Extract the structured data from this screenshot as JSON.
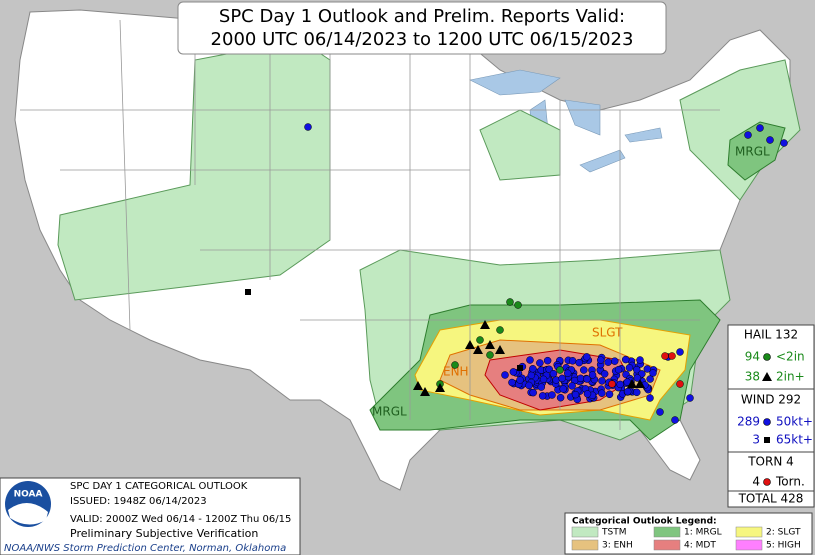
{
  "title": [
    "SPC Day 1 Outlook and Prelim. Reports Valid:",
    "2000 UTC 06/14/2023 to 1200 UTC 06/15/2023"
  ],
  "map_labels": [
    "MRGL",
    "SLGT",
    "ENH",
    "MRGL"
  ],
  "reports": {
    "hail": {
      "header": "HAIL 132",
      "rows": [
        {
          "count": "94",
          "label": "<2in"
        },
        {
          "count": "38",
          "label": "2in+"
        }
      ]
    },
    "wind": {
      "header": "WIND 292",
      "rows": [
        {
          "count": "289",
          "label": "50kt+"
        },
        {
          "count": "3",
          "label": "65kt+"
        }
      ]
    },
    "torn": {
      "header": "TORN 4",
      "rows": [
        {
          "count": "4",
          "label": "Torn."
        }
      ]
    },
    "total": "TOTAL 428"
  },
  "info": [
    "SPC DAY 1 CATEGORICAL OUTLOOK",
    "ISSUED: 1948Z 06/14/2023",
    "VALID: 2000Z Wed 06/14 - 1200Z Thu 06/15",
    "Preliminary Subjective Verification"
  ],
  "logo": "NOAA",
  "footer": "NOAA/NWS Storm Prediction Center, Norman, Oklahoma",
  "legend": {
    "title": "Categorical Outlook Legend:",
    "items": [
      {
        "label": "TSTM",
        "color": "#c1e9c1"
      },
      {
        "label": "1: MRGL",
        "color": "#7fc57f"
      },
      {
        "label": "2: SLGT",
        "color": "#f6f67f"
      },
      {
        "label": "3: ENH",
        "color": "#e6c27f"
      },
      {
        "label": "4: MDT",
        "color": "#e67f7f"
      },
      {
        "label": "5: HIGH",
        "color": "#ff7fff"
      }
    ]
  }
}
